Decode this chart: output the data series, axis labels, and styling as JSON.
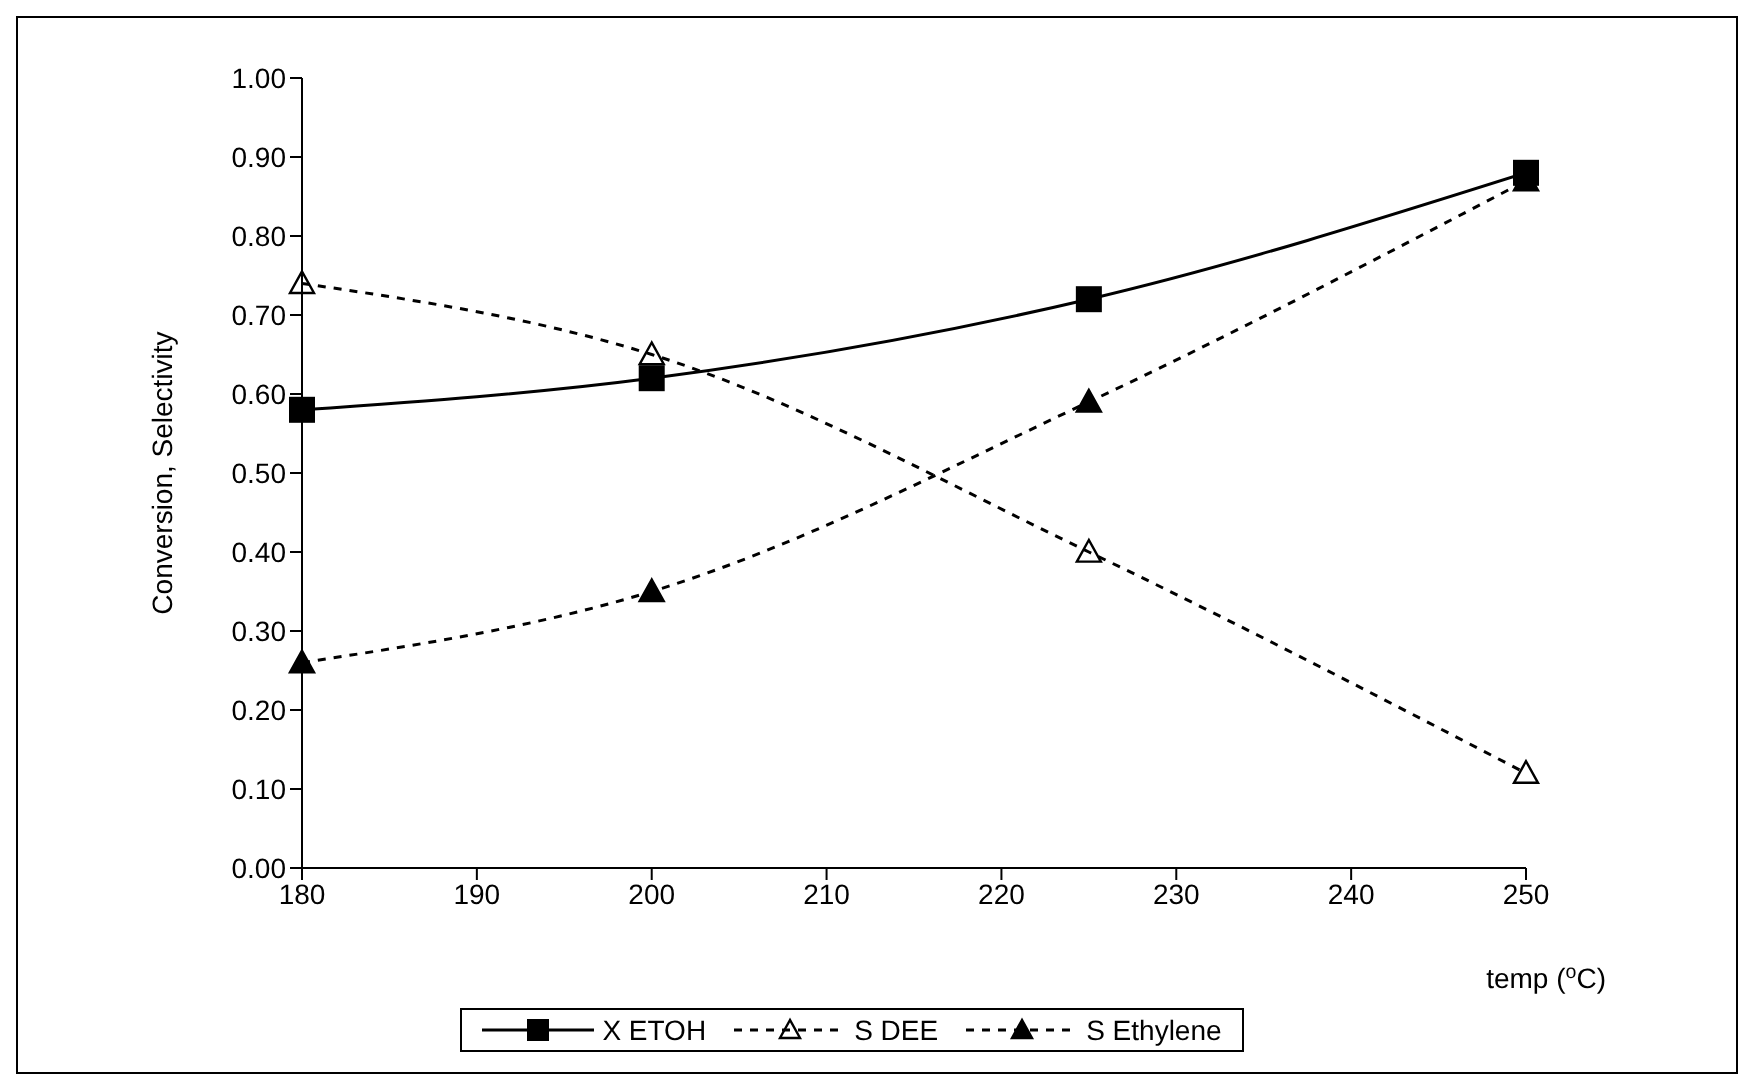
{
  "chart_data": {
    "type": "line",
    "xlabel": "temp ($^{o}$C)",
    "ylabel": "Conversion, Selectivity",
    "x": [
      180,
      200,
      225,
      250
    ],
    "series": [
      {
        "name": "X ETOH",
        "color": "#000000",
        "values": [
          0.58,
          0.62,
          0.72,
          0.88
        ],
        "marker": "square",
        "line_style": "solid"
      },
      {
        "name": "S DEE",
        "color": "#000000",
        "values": [
          0.74,
          0.65,
          0.4,
          0.12
        ],
        "marker": "triangle-open",
        "line_style": "dashed"
      },
      {
        "name": "S Ethylene",
        "color": "#000000",
        "values": [
          0.26,
          0.35,
          0.59,
          0.87
        ],
        "marker": "triangle",
        "line_style": "dashed"
      }
    ],
    "xlim": [
      180,
      250
    ],
    "xticks": [
      180,
      190,
      200,
      210,
      220,
      230,
      240,
      250
    ],
    "ylim": [
      0,
      1
    ],
    "yticks": [
      {
        "value": 0,
        "label": "0.00"
      },
      {
        "value": 0.1,
        "label": "0.10"
      },
      {
        "value": 0.2,
        "label": "0.20"
      },
      {
        "value": 0.3,
        "label": "0.30"
      },
      {
        "value": 0.4,
        "label": "0.40"
      },
      {
        "value": 0.5,
        "label": "0.50"
      },
      {
        "value": 0.6,
        "label": "0.60"
      },
      {
        "value": 0.7,
        "label": "0.70"
      },
      {
        "value": 0.8,
        "label": "0.80"
      },
      {
        "value": 0.9,
        "label": "0.90"
      },
      {
        "value": 1,
        "label": "1.00"
      }
    ],
    "grid": false,
    "legend": "bottom"
  }
}
